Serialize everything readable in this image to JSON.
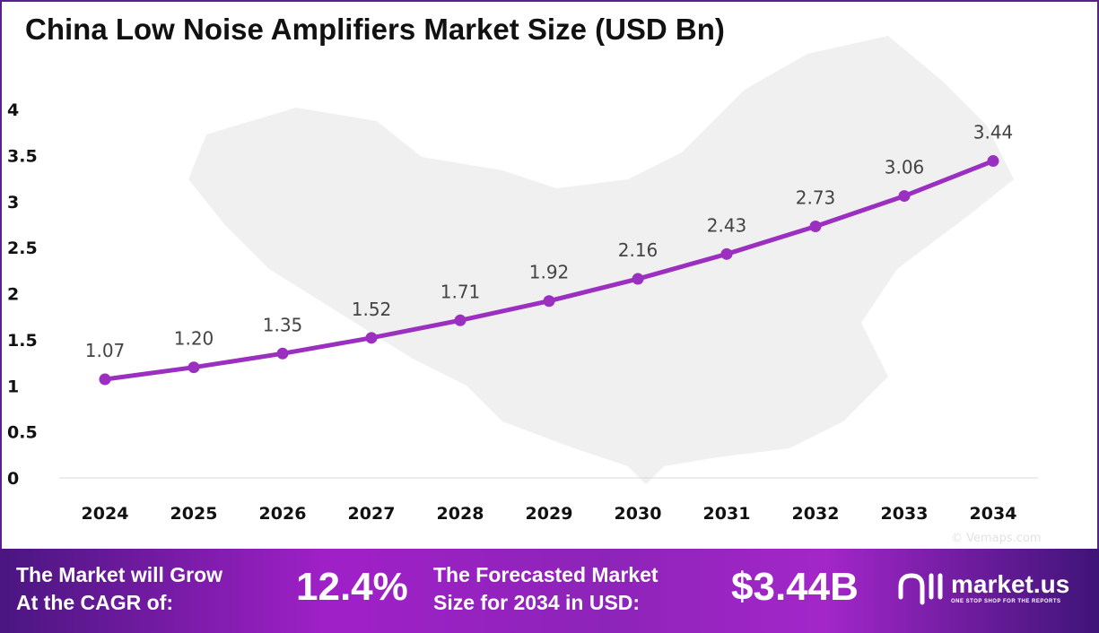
{
  "title": "China Low Noise Amplifiers Market Size (USD Bn)",
  "watermark": "© Vemaps.com",
  "chart_data": {
    "type": "line",
    "title": "China Low Noise Amplifiers Market Size (USD Bn)",
    "categories": [
      "2024",
      "2025",
      "2026",
      "2027",
      "2028",
      "2029",
      "2030",
      "2031",
      "2032",
      "2033",
      "2034"
    ],
    "values": [
      1.07,
      1.2,
      1.35,
      1.52,
      1.71,
      1.92,
      2.16,
      2.43,
      2.73,
      3.06,
      3.44
    ],
    "data_labels": [
      "1.07",
      "1.20",
      "1.35",
      "1.52",
      "1.71",
      "1.92",
      "2.16",
      "2.43",
      "2.73",
      "3.06",
      "3.44"
    ],
    "ylim": [
      0,
      4
    ],
    "yticks": [
      "0",
      "0.5",
      "1",
      "1.5",
      "2",
      "2.5",
      "3",
      "3.5",
      "4"
    ],
    "grid": false,
    "line_color": "#9b2fc0"
  },
  "banner": {
    "cagr_label_1": "The Market will Grow",
    "cagr_label_2": "At the CAGR of:",
    "cagr_value": "12.4%",
    "forecast_label_1": "The Forecasted Market",
    "forecast_label_2": "Size for 2034 in USD:",
    "forecast_value": "$3.44B",
    "logo_name": "market.us",
    "logo_tagline": "ONE STOP SHOP FOR THE REPORTS"
  }
}
